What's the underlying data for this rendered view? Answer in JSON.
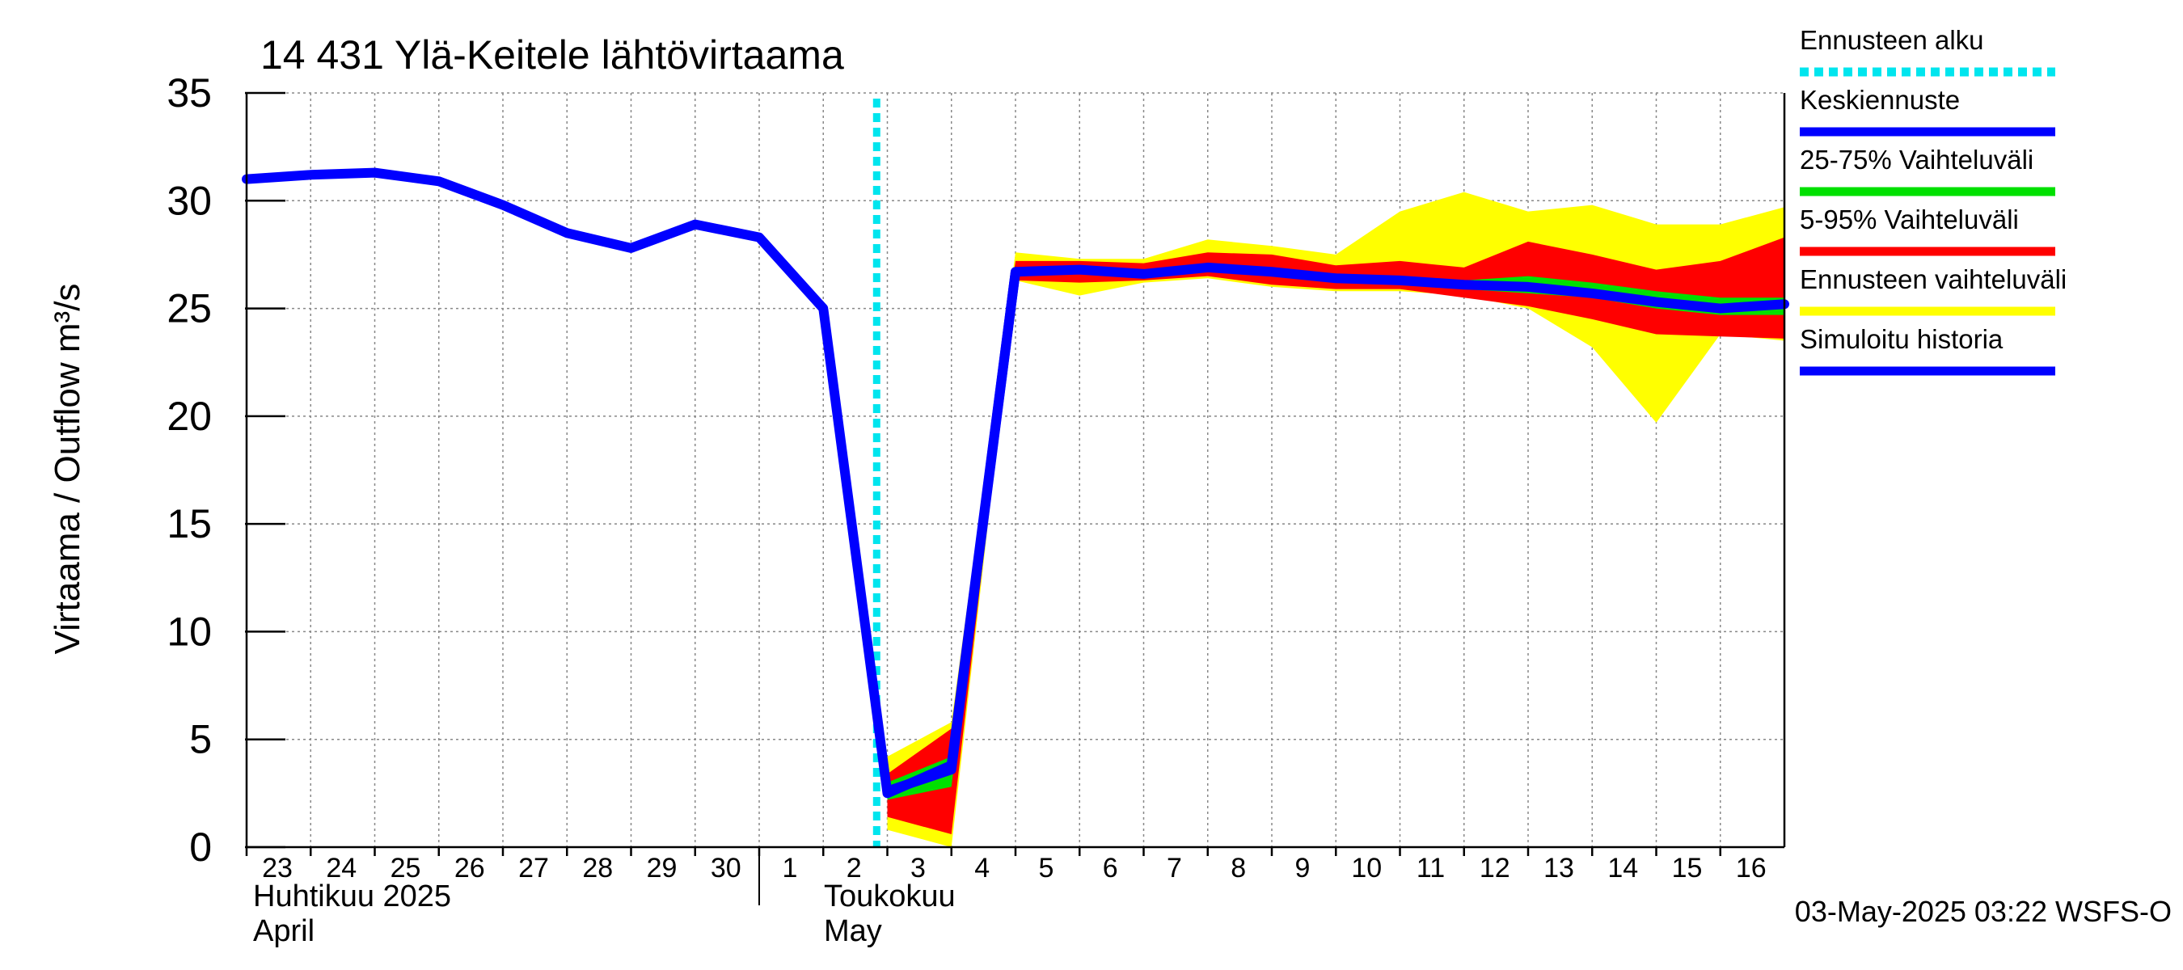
{
  "chart_data": {
    "type": "line",
    "title": "14 431 Ylä-Keitele lähtövirtaama",
    "ylabel": "Virtaama / Outflow    m³/s",
    "ylim": [
      0,
      35
    ],
    "yticks": [
      0,
      5,
      10,
      15,
      20,
      25,
      30,
      35
    ],
    "xlim": [
      "2025-04-23",
      "2025-05-17"
    ],
    "x_tick_labels": [
      "23",
      "24",
      "25",
      "26",
      "27",
      "28",
      "29",
      "30",
      "1",
      "2",
      "3",
      "4",
      "5",
      "6",
      "7",
      "8",
      "9",
      "10",
      "11",
      "12",
      "13",
      "14",
      "15",
      "16"
    ],
    "month_labels": [
      {
        "fi": "Huhtikuu  2025",
        "en": "April"
      },
      {
        "fi": "Toukokuu",
        "en": "May"
      }
    ],
    "grid": true,
    "forecast_start": "2025-05-02T20:00",
    "timestamp": "03-May-2025 03:22 WSFS-O",
    "legend": [
      {
        "label": "Ennusteen alku",
        "color": "#00e5ee",
        "style": "dotted"
      },
      {
        "label": "Keskiennuste",
        "color": "#0000ff"
      },
      {
        "label": "25-75% Vaihteluväli",
        "color": "#00e000"
      },
      {
        "label": "5-95% Vaihteluväli",
        "color": "#ff0000"
      },
      {
        "label": "Ennusteen vaihteluväli",
        "color": "#ffff00"
      },
      {
        "label": "Simuloitu historia",
        "color": "#0000ff"
      }
    ],
    "history": {
      "x": [
        "2025-04-23",
        "2025-04-24",
        "2025-04-25",
        "2025-04-26",
        "2025-04-27",
        "2025-04-28",
        "2025-04-29",
        "2025-04-30",
        "2025-05-01",
        "2025-05-02",
        "2025-05-03",
        "2025-05-04",
        "2025-05-05"
      ],
      "y": [
        31.0,
        31.2,
        31.3,
        30.9,
        29.8,
        28.5,
        27.8,
        28.9,
        28.3,
        25.0,
        2.5,
        3.8,
        26.7
      ]
    },
    "forecast_dates": [
      "2025-05-03",
      "2025-05-04",
      "2025-05-05",
      "2025-05-06",
      "2025-05-07",
      "2025-05-08",
      "2025-05-09",
      "2025-05-10",
      "2025-05-11",
      "2025-05-12",
      "2025-05-13",
      "2025-05-14",
      "2025-05-15",
      "2025-05-16",
      "2025-05-17"
    ],
    "envelope_min": [
      0.8,
      0.0,
      26.3,
      25.6,
      26.2,
      26.4,
      26.0,
      25.8,
      25.8,
      25.6,
      25.0,
      23.2,
      19.7,
      23.8,
      23.5
    ],
    "envelope_max": [
      4.2,
      5.8,
      27.6,
      27.3,
      27.3,
      28.2,
      27.9,
      27.5,
      29.5,
      30.4,
      29.5,
      29.8,
      28.9,
      28.9,
      29.7
    ],
    "p5": [
      1.4,
      0.6,
      26.3,
      26.2,
      26.3,
      26.5,
      26.1,
      25.9,
      25.9,
      25.5,
      25.1,
      24.5,
      23.8,
      23.7,
      23.6
    ],
    "p95": [
      3.4,
      5.5,
      27.2,
      27.2,
      27.1,
      27.6,
      27.5,
      27.0,
      27.2,
      26.9,
      28.1,
      27.5,
      26.8,
      27.2,
      28.3
    ],
    "p25": [
      2.2,
      2.8,
      26.5,
      26.7,
      26.5,
      26.8,
      26.5,
      26.2,
      26.1,
      25.9,
      25.7,
      25.5,
      25.0,
      24.7,
      24.7
    ],
    "p75": [
      3.0,
      4.2,
      26.9,
      27.0,
      26.8,
      27.1,
      26.9,
      26.6,
      26.5,
      26.3,
      26.5,
      26.2,
      25.8,
      25.5,
      25.5
    ],
    "median": [
      2.6,
      3.6,
      26.7,
      26.8,
      26.6,
      26.9,
      26.7,
      26.4,
      26.3,
      26.1,
      26.0,
      25.7,
      25.3,
      25.0,
      25.2
    ]
  }
}
